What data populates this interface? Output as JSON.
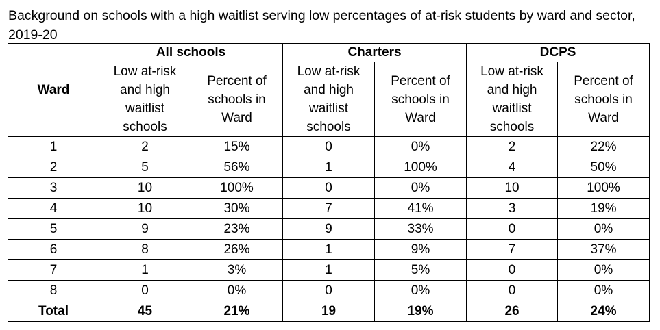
{
  "caption": "Background on schools with a high waitlist serving low percentages of at-risk students by ward and sector, 2019-20",
  "table": {
    "ward_header": "Ward",
    "groups": [
      "All schools",
      "Charters",
      "DCPS"
    ],
    "sub_headers": {
      "count": "Low at-risk and high waitlist schools",
      "percent": "Percent of schools in Ward"
    },
    "rows": [
      [
        "1",
        "2",
        "15%",
        "0",
        "0%",
        "2",
        "22%"
      ],
      [
        "2",
        "5",
        "56%",
        "1",
        "100%",
        "4",
        "50%"
      ],
      [
        "3",
        "10",
        "100%",
        "0",
        "0%",
        "10",
        "100%"
      ],
      [
        "4",
        "10",
        "30%",
        "7",
        "41%",
        "3",
        "19%"
      ],
      [
        "5",
        "9",
        "23%",
        "9",
        "33%",
        "0",
        "0%"
      ],
      [
        "6",
        "8",
        "26%",
        "1",
        "9%",
        "7",
        "37%"
      ],
      [
        "7",
        "1",
        "3%",
        "1",
        "5%",
        "0",
        "0%"
      ],
      [
        "8",
        "0",
        "0%",
        "0",
        "0%",
        "0",
        "0%"
      ]
    ],
    "total": [
      "Total",
      "45",
      "21%",
      "19",
      "19%",
      "26",
      "24%"
    ]
  }
}
